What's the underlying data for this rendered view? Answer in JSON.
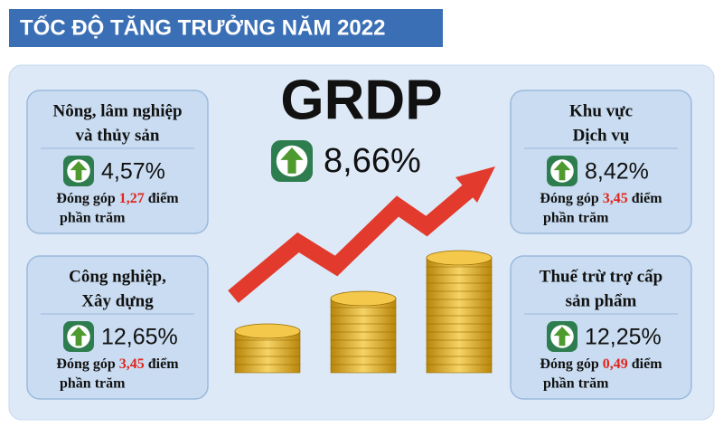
{
  "header": {
    "title": "TỐC ĐỘ TĂNG TRƯỞNG NĂM 2022"
  },
  "grdp": {
    "label": "GRDP",
    "growth": "8,66%"
  },
  "sectors": [
    {
      "name": [
        "Nông, lâm nghiệp",
        "và thủy sản"
      ],
      "growth": "4,57%",
      "contribution_prefix": "Đóng góp",
      "contribution": "1,27",
      "contribution_suffix": [
        "điểm",
        "phần trăm"
      ]
    },
    {
      "name": [
        "Khu vực",
        "Dịch vụ"
      ],
      "growth": "8,42%",
      "contribution_prefix": "Đóng góp",
      "contribution": "3,45",
      "contribution_suffix": [
        "điểm",
        "phần trăm"
      ]
    },
    {
      "name": [
        "Công nghiệp,",
        "Xây dựng"
      ],
      "growth": "12,65%",
      "contribution_prefix": "Đóng góp",
      "contribution": "3,45",
      "contribution_suffix": [
        "điểm",
        "phần trăm"
      ]
    },
    {
      "name": [
        "Thuế trừ trợ cấp",
        "sản phẩm"
      ],
      "growth": "12,25%",
      "contribution_prefix": "Đóng góp",
      "contribution": "0,49",
      "contribution_suffix": [
        "điểm",
        "phần trăm"
      ]
    }
  ]
}
